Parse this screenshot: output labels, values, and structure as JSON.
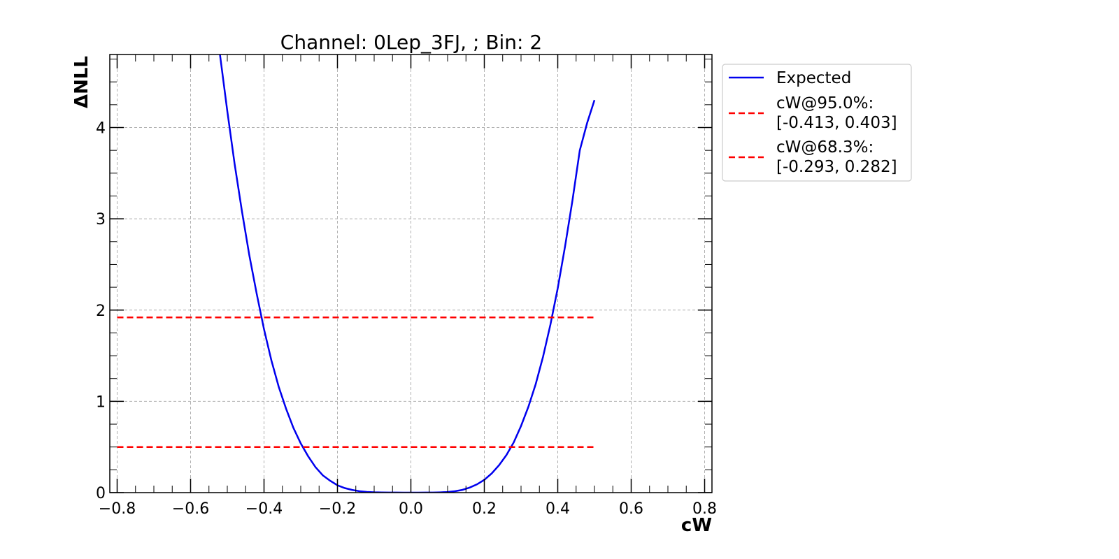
{
  "chart_data": {
    "type": "line",
    "title": "Channel: 0Lep_3FJ, ; Bin: 2",
    "xlabel": "cW",
    "ylabel": "ΔNLL",
    "xlim": [
      -0.82,
      0.82
    ],
    "ylim": [
      0,
      4.8
    ],
    "grid": true,
    "legend_position": "outside-right",
    "x_ticks": [
      -0.8,
      -0.6,
      -0.4,
      -0.2,
      0.0,
      0.2,
      0.4,
      0.6,
      0.8
    ],
    "x_tick_labels": [
      "−0.8",
      "−0.6",
      "−0.4",
      "−0.2",
      "0.0",
      "0.2",
      "0.4",
      "0.6",
      "0.8"
    ],
    "y_ticks": [
      0,
      1,
      2,
      3,
      4
    ],
    "y_tick_labels": [
      "0",
      "1",
      "2",
      "3",
      "4"
    ],
    "series": [
      {
        "name": "Expected",
        "color": "#0000ee",
        "style": "solid",
        "x": [
          -0.52,
          -0.5,
          -0.48,
          -0.46,
          -0.44,
          -0.42,
          -0.4,
          -0.38,
          -0.36,
          -0.34,
          -0.32,
          -0.3,
          -0.28,
          -0.26,
          -0.24,
          -0.22,
          -0.2,
          -0.18,
          -0.16,
          -0.14,
          -0.12,
          -0.1,
          -0.08,
          -0.06,
          -0.04,
          -0.02,
          0.0,
          0.02,
          0.04,
          0.06,
          0.08,
          0.1,
          0.12,
          0.14,
          0.16,
          0.18,
          0.2,
          0.22,
          0.24,
          0.26,
          0.28,
          0.3,
          0.32,
          0.34,
          0.36,
          0.38,
          0.4,
          0.42,
          0.44,
          0.46,
          0.48,
          0.5
        ],
        "y": [
          4.8,
          4.18,
          3.6,
          3.08,
          2.6,
          2.18,
          1.79,
          1.45,
          1.16,
          0.92,
          0.71,
          0.54,
          0.4,
          0.28,
          0.19,
          0.13,
          0.08,
          0.05,
          0.03,
          0.015,
          0.008,
          0.004,
          0.002,
          0.001,
          0.0005,
          0.0002,
          0.0,
          0.0002,
          0.0005,
          0.001,
          0.003,
          0.007,
          0.015,
          0.03,
          0.055,
          0.09,
          0.14,
          0.21,
          0.3,
          0.41,
          0.55,
          0.73,
          0.94,
          1.19,
          1.49,
          1.84,
          2.24,
          2.7,
          3.2,
          3.75,
          4.05,
          4.3
        ]
      },
      {
        "name": "cW@95.0%:\n[-0.413, 0.403]",
        "color": "#ff0000",
        "style": "dashed",
        "x": [
          -0.8,
          0.5
        ],
        "y": [
          1.92,
          1.92
        ]
      },
      {
        "name": "cW@68.3%:\n[-0.293, 0.282]",
        "color": "#ff0000",
        "style": "dashed",
        "x": [
          -0.8,
          0.5
        ],
        "y": [
          0.5,
          0.5
        ]
      }
    ]
  }
}
